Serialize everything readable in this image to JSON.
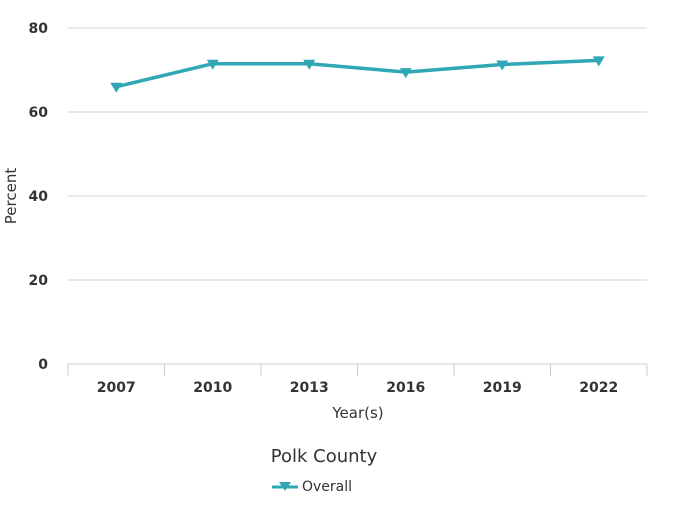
{
  "chart_data": {
    "type": "line",
    "title": "",
    "xlabel": "Year(s)",
    "ylabel": "Percent",
    "categories": [
      "2007",
      "2010",
      "2013",
      "2016",
      "2019",
      "2022"
    ],
    "ylim": [
      0,
      80
    ],
    "yticks": [
      "0",
      "20",
      "40",
      "60",
      "80"
    ],
    "grid": true,
    "legend_position": "bottom",
    "legend_title": "Polk County",
    "series": [
      {
        "name": "Overall",
        "color": "#2fa7b4",
        "marker": "triangle-down",
        "values": [
          66,
          71.5,
          71.5,
          69.5,
          71.3,
          72.3
        ]
      }
    ]
  }
}
